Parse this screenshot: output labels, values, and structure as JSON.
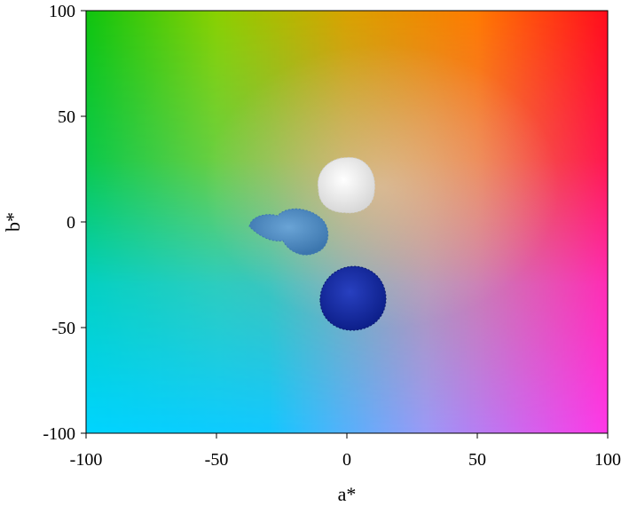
{
  "chart_data": {
    "type": "scatter",
    "title": "",
    "xlabel": "a*",
    "ylabel": "b*",
    "xlim": [
      -100,
      100
    ],
    "ylim": [
      -100,
      100
    ],
    "x_ticks": [
      -100,
      -50,
      0,
      50,
      100
    ],
    "y_ticks": [
      -100,
      -50,
      0,
      50,
      100
    ],
    "grid": false,
    "background": "CIELAB a*-b* color plane (green top-left, red/orange top-right, cyan bottom-left, magenta bottom-right)",
    "points": [
      {
        "a": 0,
        "b": 17,
        "color": "#efefef"
      },
      {
        "a": -17,
        "b": -3,
        "color": "#4f8dc3"
      },
      {
        "a": 2,
        "b": -37,
        "color": "#1a2fa6"
      }
    ]
  }
}
